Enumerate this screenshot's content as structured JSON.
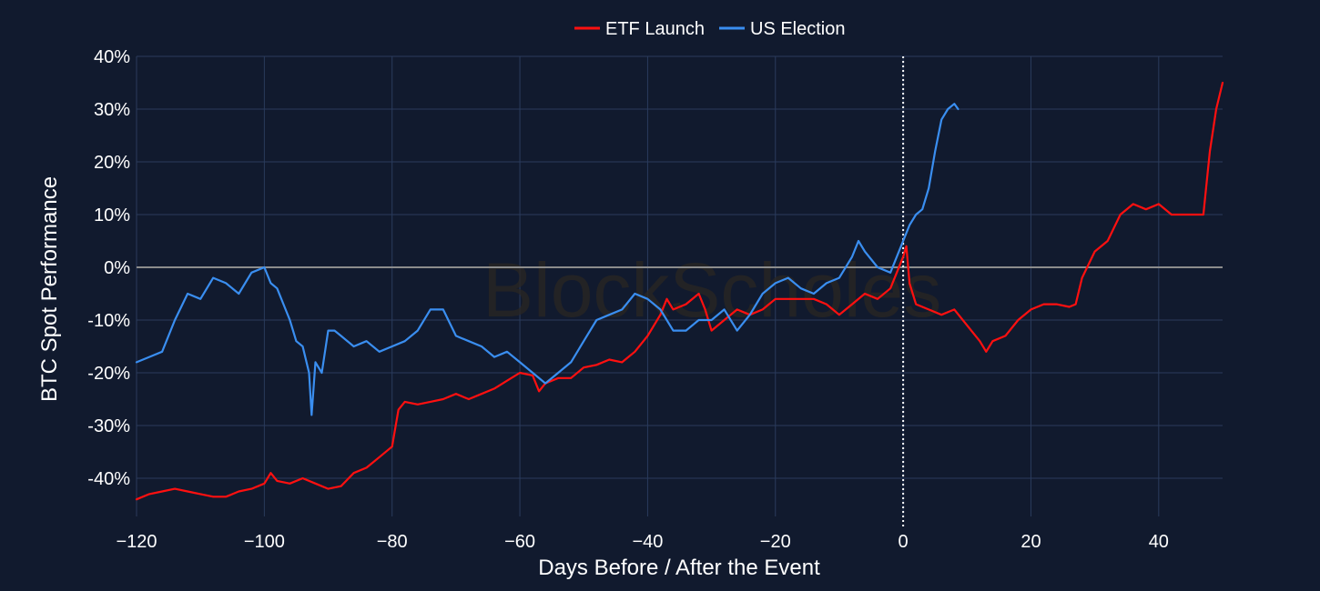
{
  "watermark": "BlockScholes",
  "colors": {
    "background": "#111a2e",
    "grid": "#2a3b5c",
    "zero_line": "#8c8c8c",
    "event_line": "#ffffff",
    "etf": "#ff1010",
    "election": "#3a8ef0"
  },
  "chart_data": {
    "type": "line",
    "title": "",
    "xlabel": "Days Before / After the Event",
    "ylabel": "BTC Spot Performance",
    "xlim": [
      -120,
      50
    ],
    "ylim": [
      -48,
      40
    ],
    "x_ticks": [
      -120,
      -100,
      -80,
      -60,
      -40,
      -20,
      0,
      20,
      40
    ],
    "x_tick_labels": [
      "−120",
      "−100",
      "−80",
      "−60",
      "−40",
      "−20",
      "0",
      "20",
      "40"
    ],
    "y_ticks": [
      40,
      30,
      20,
      10,
      0,
      -10,
      -20,
      -30,
      -40
    ],
    "y_tick_labels": [
      "40%",
      "30%",
      "20%",
      "10%",
      "0%",
      "-10%",
      "-20%",
      "-30%",
      "-40%"
    ],
    "grid": true,
    "legend_position": "top-center",
    "event_marker_x": 0,
    "series": [
      {
        "name": "ETF Launch",
        "color": "#ff1010",
        "x": [
          -120,
          -118,
          -116,
          -114,
          -112,
          -110,
          -108,
          -106,
          -104,
          -102,
          -100,
          -99,
          -98,
          -96,
          -94,
          -92,
          -90,
          -88,
          -86,
          -84,
          -82,
          -80,
          -79,
          -78,
          -76,
          -74,
          -72,
          -70,
          -68,
          -66,
          -64,
          -62,
          -60,
          -58,
          -57,
          -56,
          -54,
          -52,
          -50,
          -48,
          -46,
          -44,
          -42,
          -40,
          -38,
          -37,
          -36,
          -34,
          -32,
          -31,
          -30,
          -28,
          -26,
          -24,
          -22,
          -20,
          -18,
          -16,
          -14,
          -12,
          -10,
          -8,
          -6,
          -4,
          -2,
          -1,
          0,
          0.5,
          1,
          2,
          4,
          6,
          8,
          10,
          12,
          13,
          14,
          16,
          18,
          20,
          22,
          24,
          26,
          27,
          28,
          30,
          32,
          34,
          36,
          38,
          40,
          42,
          44,
          46,
          47,
          48,
          49,
          50
        ],
        "values": [
          -44,
          -43,
          -42.5,
          -42,
          -42.5,
          -43,
          -43.5,
          -43.5,
          -42.5,
          -42,
          -41,
          -39,
          -40.5,
          -41,
          -40,
          -41,
          -42,
          -41.5,
          -39,
          -38,
          -36,
          -34,
          -27,
          -25.5,
          -26,
          -25.5,
          -25,
          -24,
          -25,
          -24,
          -23,
          -21.5,
          -20,
          -20.5,
          -23.5,
          -22,
          -21,
          -21,
          -19,
          -18.5,
          -17.5,
          -18,
          -16,
          -13,
          -9,
          -6,
          -8,
          -7,
          -5,
          -8,
          -12,
          -10,
          -8,
          -9,
          -8,
          -6,
          -6,
          -6,
          -6,
          -7,
          -9,
          -7,
          -5,
          -6,
          -4,
          -1,
          2,
          4,
          -3,
          -7,
          -8,
          -9,
          -8,
          -11,
          -14,
          -16,
          -14,
          -13,
          -10,
          -8,
          -7,
          -7,
          -7.5,
          -7,
          -2,
          3,
          5,
          10,
          12,
          11,
          12,
          10,
          10,
          10,
          10,
          22,
          30,
          35
        ]
      },
      {
        "name": "US Election",
        "color": "#3a8ef0",
        "x": [
          -120,
          -118,
          -116,
          -114,
          -112,
          -110,
          -108,
          -106,
          -104,
          -102,
          -100,
          -99,
          -98,
          -97,
          -96,
          -95,
          -94,
          -93,
          -92.6,
          -92,
          -91,
          -90,
          -89,
          -88,
          -86,
          -84,
          -82,
          -80,
          -78,
          -76,
          -74,
          -72,
          -70,
          -68,
          -66,
          -64,
          -62,
          -60,
          -58,
          -56,
          -54,
          -52,
          -50,
          -48,
          -46,
          -44,
          -42,
          -40,
          -38,
          -36,
          -34,
          -32,
          -30,
          -28,
          -26,
          -24,
          -22,
          -20,
          -18,
          -16,
          -14,
          -12,
          -10,
          -8,
          -7,
          -6,
          -4,
          -2,
          0,
          1,
          2,
          3,
          4,
          5,
          6,
          7,
          8,
          8.6
        ],
        "values": [
          -18,
          -17,
          -16,
          -10,
          -5,
          -6,
          -2,
          -3,
          -5,
          -1,
          0,
          -3,
          -4,
          -7,
          -10,
          -14,
          -15,
          -20,
          -28,
          -18,
          -20,
          -12,
          -12,
          -13,
          -15,
          -14,
          -16,
          -15,
          -14,
          -12,
          -8,
          -8,
          -13,
          -14,
          -15,
          -17,
          -16,
          -18,
          -20,
          -22,
          -20,
          -18,
          -14,
          -10,
          -9,
          -8,
          -5,
          -6,
          -8,
          -12,
          -12,
          -10,
          -10,
          -8,
          -12,
          -9,
          -5,
          -3,
          -2,
          -4,
          -5,
          -3,
          -2,
          2,
          5,
          3,
          0,
          -1,
          5,
          8,
          10,
          11,
          15,
          22,
          28,
          30,
          31,
          30
        ]
      }
    ]
  }
}
